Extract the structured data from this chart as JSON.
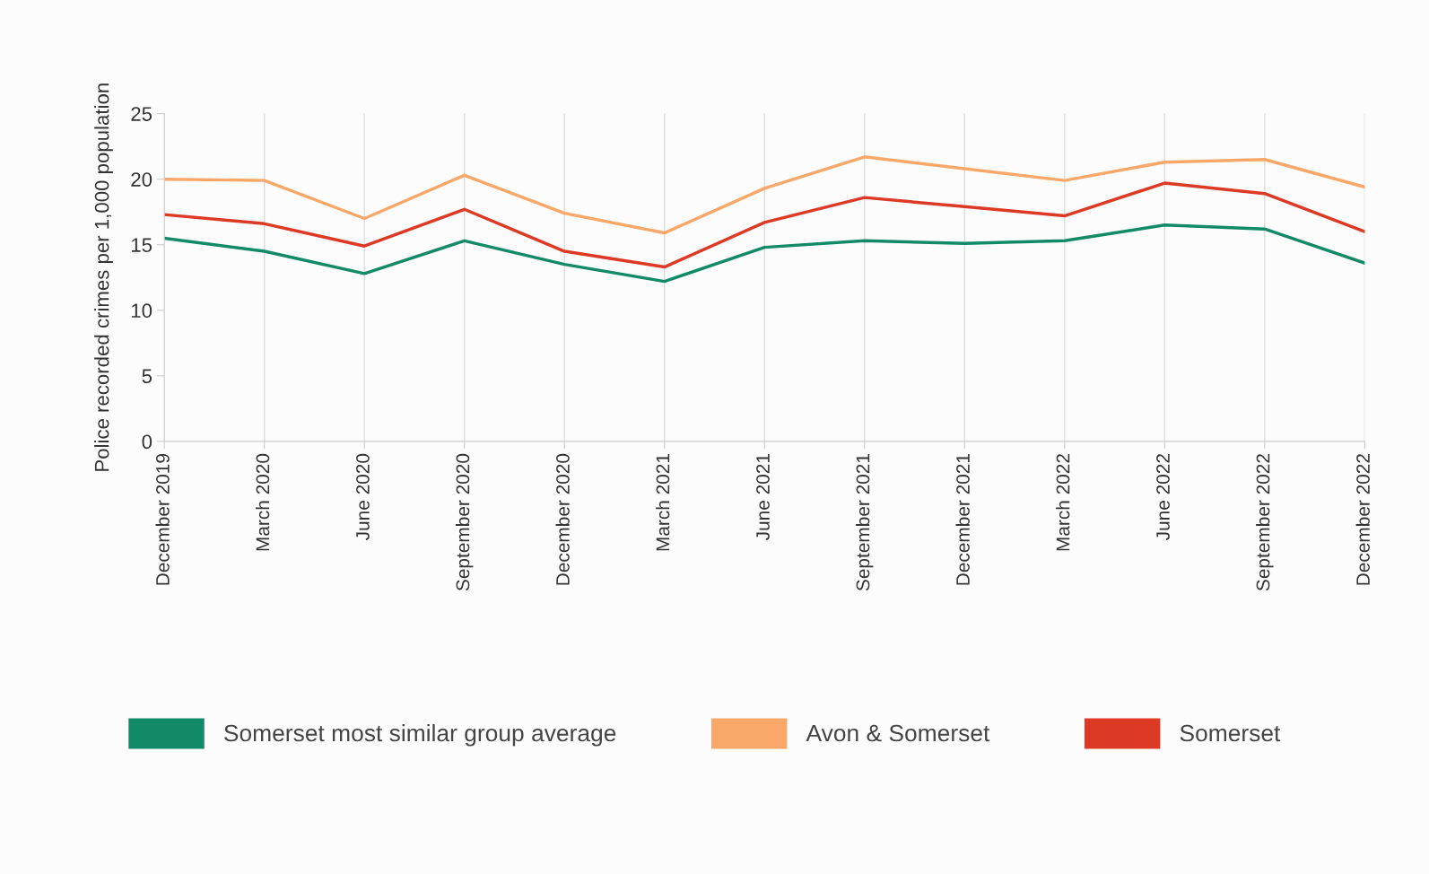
{
  "chart_data": {
    "type": "line",
    "ylabel": "Police recorded crimes per 1,000 population",
    "categories": [
      "December 2019",
      "March 2020",
      "June 2020",
      "September 2020",
      "December 2020",
      "March 2021",
      "June 2021",
      "September 2021",
      "December 2021",
      "March 2022",
      "June 2022",
      "September 2022",
      "December 2022"
    ],
    "series": [
      {
        "name": "Somerset most similar group average",
        "color": "#138a67",
        "values": [
          15.5,
          14.5,
          12.8,
          15.3,
          13.5,
          12.2,
          14.8,
          15.3,
          15.1,
          15.3,
          16.5,
          16.2,
          13.6
        ]
      },
      {
        "name": "Avon & Somerset",
        "color": "#f9a86a",
        "values": [
          20.0,
          19.9,
          17.0,
          20.3,
          17.4,
          15.9,
          19.3,
          21.7,
          20.8,
          19.9,
          21.3,
          21.5,
          19.4
        ]
      },
      {
        "name": "Somerset",
        "color": "#dd3a26",
        "values": [
          17.3,
          16.6,
          14.9,
          17.7,
          14.5,
          13.3,
          16.7,
          18.6,
          17.9,
          17.2,
          19.7,
          18.9,
          16.0
        ]
      }
    ],
    "ylim": [
      0,
      25
    ],
    "yticks": [
      0,
      5,
      10,
      15,
      20,
      25
    ],
    "grid": "x",
    "legend": "bottom",
    "marker": "none",
    "line_style": "solid"
  }
}
